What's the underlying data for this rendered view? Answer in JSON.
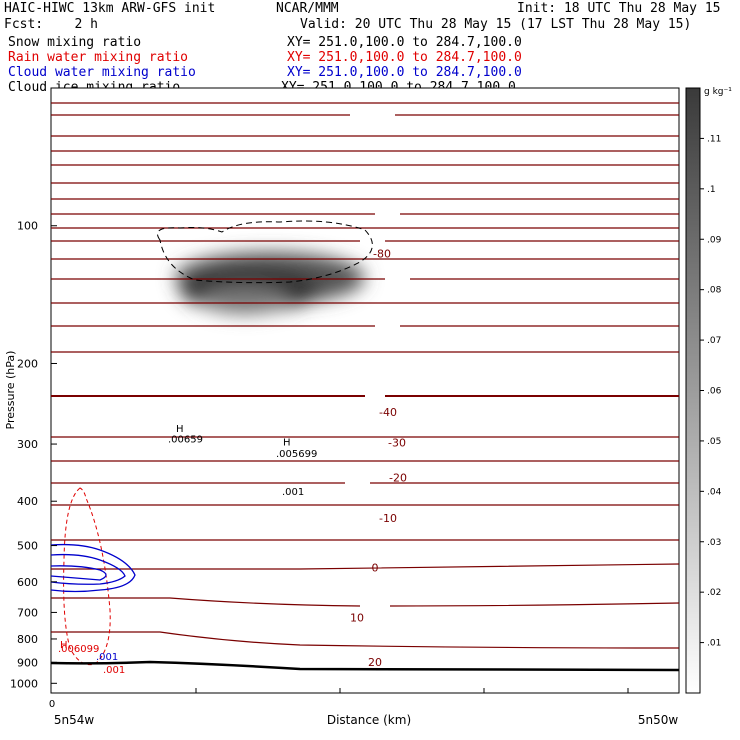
{
  "header": {
    "line1_left": "HAIC-HIWC 13km ARW-GFS init",
    "line1_mid": "NCAR/MMM",
    "line1_right": "Init: 18 UTC Thu 28 May 15",
    "line2_left": "Fcst:    2 h",
    "line2_right": "Valid: 20 UTC Thu 28 May 15 (17 LST Thu 28 May 15)"
  },
  "fields": [
    {
      "name": "Snow mixing ratio",
      "xy": "XY= 251.0,100.0 to 284.7,100.0",
      "color": "#000000"
    },
    {
      "name": "Rain water mixing ratio",
      "xy": "XY= 251.0,100.0 to 284.7,100.0",
      "color": "#e00000"
    },
    {
      "name": "Cloud water mixing ratio",
      "xy": "XY= 251.0,100.0 to 284.7,100.0",
      "color": "#0000cc"
    },
    {
      "name": "Cloud ice mixing ratio",
      "xy": "XY= 251.0,100.0 to 284.7,100.0",
      "color": "#000000"
    }
  ],
  "chart_data": {
    "type": "contour",
    "ylabel": "Pressure (hPa)",
    "xlabel": "Distance (km)",
    "x_left_label": "5n54w",
    "x_right_label": "5n50w",
    "x_tick_labels": [
      "0"
    ],
    "y_ticks": [
      100,
      200,
      300,
      400,
      500,
      600,
      700,
      800,
      900,
      1000
    ],
    "ylim": [
      1050,
      50
    ],
    "y_scale": "log",
    "colorbar": {
      "unit": "g kg⁻¹",
      "ticks": [
        ".01",
        ".02",
        ".03",
        ".04",
        ".05",
        ".06",
        ".07",
        ".08",
        ".09",
        ".1",
        ".11"
      ],
      "range": [
        0,
        0.12
      ]
    },
    "temperature_labels": [
      {
        "text": "-80",
        "p": 115
      },
      {
        "text": "-40",
        "p": 255
      },
      {
        "text": "-30",
        "p": 298
      },
      {
        "text": "-20",
        "p": 355
      },
      {
        "text": "-10",
        "p": 435
      },
      {
        "text": "0",
        "p": 558
      },
      {
        "text": "10",
        "p": 718
      },
      {
        "text": "20",
        "p": 898
      }
    ],
    "annotations": [
      {
        "text": "H",
        "p": 282,
        "color": "#000000"
      },
      {
        "text": ".00659",
        "p": 298,
        "color": "#000000"
      },
      {
        "text": "H",
        "p": 302,
        "color": "#000000"
      },
      {
        "text": ".005699",
        "p": 320,
        "color": "#000000"
      },
      {
        "text": ".001",
        "p": 388,
        "color": "#000000"
      },
      {
        "text": "H",
        "p": 837,
        "color": "#e00000"
      },
      {
        "text": ".006099",
        "p": 855,
        "color": "#e00000"
      },
      {
        "text": ".001",
        "p": 890,
        "color": "#0000cc"
      },
      {
        "text": ".001",
        "p": 950,
        "color": "#e00000"
      }
    ]
  }
}
